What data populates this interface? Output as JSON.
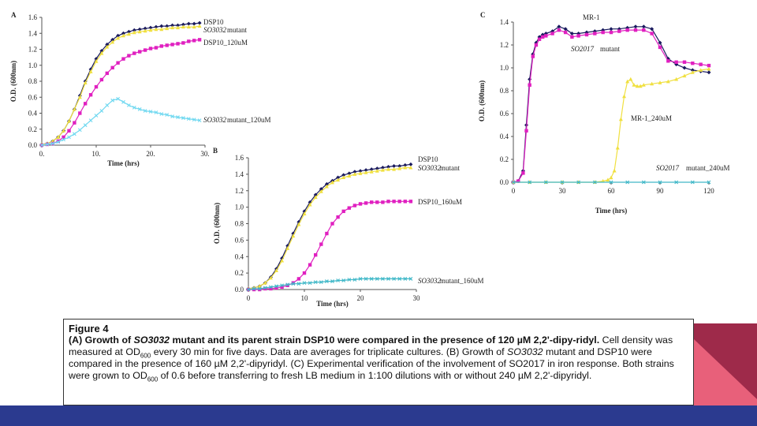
{
  "chart_data": [
    {
      "type": "line",
      "panel": "A",
      "xlabel": "Time (hrs)",
      "ylabel": "O.D. (600nm)",
      "xlim": [
        0,
        30
      ],
      "ylim": [
        0,
        1.6
      ],
      "xticks": [
        "0.",
        "10.",
        "20.",
        "30."
      ],
      "yticks": [
        "0.0",
        "0.2",
        "0.4",
        "0.6",
        "0.8",
        "1.0",
        "1.2",
        "1.4",
        "1.6"
      ],
      "series": [
        {
          "name": "DSP10",
          "color": "#1a1a5e",
          "marker": "diamond",
          "x": [
            0,
            1,
            2,
            3,
            4,
            5,
            6,
            7,
            8,
            9,
            10,
            11,
            12,
            13,
            14,
            15,
            16,
            17,
            18,
            19,
            20,
            21,
            22,
            23,
            24,
            25,
            26,
            27,
            28,
            29
          ],
          "y": [
            0.01,
            0.02,
            0.05,
            0.1,
            0.18,
            0.3,
            0.45,
            0.62,
            0.8,
            0.95,
            1.08,
            1.18,
            1.26,
            1.32,
            1.37,
            1.4,
            1.42,
            1.44,
            1.45,
            1.46,
            1.47,
            1.48,
            1.49,
            1.49,
            1.5,
            1.5,
            1.51,
            1.52,
            1.52,
            1.53
          ]
        },
        {
          "name": "SO3032 mutant",
          "color": "#f0e040",
          "marker": "triangle",
          "x": [
            0,
            1,
            2,
            3,
            4,
            5,
            6,
            7,
            8,
            9,
            10,
            11,
            12,
            13,
            14,
            15,
            16,
            17,
            18,
            19,
            20,
            21,
            22,
            23,
            24,
            25,
            26,
            27,
            28,
            29
          ],
          "y": [
            0.01,
            0.02,
            0.05,
            0.1,
            0.18,
            0.3,
            0.45,
            0.6,
            0.78,
            0.92,
            1.05,
            1.15,
            1.23,
            1.29,
            1.34,
            1.37,
            1.39,
            1.41,
            1.42,
            1.43,
            1.44,
            1.45,
            1.45,
            1.46,
            1.47,
            1.47,
            1.48,
            1.48,
            1.48,
            1.49
          ]
        },
        {
          "name": "DSP10_120uM",
          "color": "#e020c0",
          "marker": "square",
          "x": [
            0,
            1,
            2,
            3,
            4,
            5,
            6,
            7,
            8,
            9,
            10,
            11,
            12,
            13,
            14,
            15,
            16,
            17,
            18,
            19,
            20,
            21,
            22,
            23,
            24,
            25,
            26,
            27,
            28,
            29
          ],
          "y": [
            0.0,
            0.01,
            0.02,
            0.05,
            0.1,
            0.18,
            0.28,
            0.4,
            0.52,
            0.63,
            0.73,
            0.82,
            0.9,
            0.97,
            1.03,
            1.08,
            1.12,
            1.15,
            1.17,
            1.19,
            1.21,
            1.22,
            1.24,
            1.25,
            1.26,
            1.27,
            1.28,
            1.3,
            1.31,
            1.32
          ]
        },
        {
          "name": "SO3032 mutant_120uM",
          "color": "#6fd8f0",
          "marker": "cross",
          "x": [
            0,
            1,
            2,
            3,
            4,
            5,
            6,
            7,
            8,
            9,
            10,
            11,
            12,
            13,
            14,
            15,
            16,
            17,
            18,
            19,
            20,
            21,
            22,
            23,
            24,
            25,
            26,
            27,
            28,
            29
          ],
          "y": [
            0.0,
            0.01,
            0.02,
            0.04,
            0.07,
            0.1,
            0.14,
            0.19,
            0.25,
            0.31,
            0.37,
            0.43,
            0.5,
            0.56,
            0.58,
            0.54,
            0.5,
            0.47,
            0.45,
            0.43,
            0.42,
            0.41,
            0.39,
            0.38,
            0.36,
            0.35,
            0.34,
            0.33,
            0.32,
            0.31
          ]
        }
      ],
      "labels": [
        "DSP10",
        "SO3032",
        "mutant",
        "DSP10_120uM",
        "SO3032",
        "mutant_120uM"
      ]
    },
    {
      "type": "line",
      "panel": "B",
      "xlabel": "Time (hrs)",
      "ylabel": "O.D. (600nm)",
      "xlim": [
        0,
        30
      ],
      "ylim": [
        0,
        1.6
      ],
      "xticks": [
        "0",
        "10",
        "20",
        "30"
      ],
      "yticks": [
        "0.0",
        "0.2",
        "0.4",
        "0.6",
        "0.8",
        "1.0",
        "1.2",
        "1.4",
        "1.6"
      ],
      "series": [
        {
          "name": "DSP10",
          "color": "#1a1a5e",
          "marker": "diamond",
          "x": [
            0,
            1,
            2,
            3,
            4,
            5,
            6,
            7,
            8,
            9,
            10,
            11,
            12,
            13,
            14,
            15,
            16,
            17,
            18,
            19,
            20,
            21,
            22,
            23,
            24,
            25,
            26,
            27,
            28,
            29
          ],
          "y": [
            0.01,
            0.02,
            0.04,
            0.08,
            0.15,
            0.25,
            0.38,
            0.53,
            0.68,
            0.82,
            0.95,
            1.06,
            1.15,
            1.22,
            1.28,
            1.32,
            1.36,
            1.39,
            1.41,
            1.43,
            1.44,
            1.45,
            1.46,
            1.47,
            1.48,
            1.49,
            1.5,
            1.5,
            1.51,
            1.52
          ]
        },
        {
          "name": "SO3032 mutant",
          "color": "#f0e040",
          "marker": "triangle",
          "x": [
            0,
            1,
            2,
            3,
            4,
            5,
            6,
            7,
            8,
            9,
            10,
            11,
            12,
            13,
            14,
            15,
            16,
            17,
            18,
            19,
            20,
            21,
            22,
            23,
            24,
            25,
            26,
            27,
            28,
            29
          ],
          "y": [
            0.01,
            0.02,
            0.04,
            0.08,
            0.14,
            0.23,
            0.35,
            0.5,
            0.65,
            0.79,
            0.92,
            1.03,
            1.12,
            1.19,
            1.25,
            1.3,
            1.33,
            1.36,
            1.38,
            1.4,
            1.41,
            1.42,
            1.43,
            1.44,
            1.45,
            1.46,
            1.46,
            1.47,
            1.48,
            1.48
          ]
        },
        {
          "name": "DSP10_160uM",
          "color": "#e020c0",
          "marker": "square",
          "x": [
            0,
            1,
            2,
            3,
            4,
            5,
            6,
            7,
            8,
            9,
            10,
            11,
            12,
            13,
            14,
            15,
            16,
            17,
            18,
            19,
            20,
            21,
            22,
            23,
            24,
            25,
            26,
            27,
            28,
            29
          ],
          "y": [
            0.0,
            0.0,
            0.0,
            0.01,
            0.01,
            0.02,
            0.03,
            0.05,
            0.08,
            0.13,
            0.2,
            0.3,
            0.42,
            0.55,
            0.68,
            0.8,
            0.88,
            0.95,
            0.99,
            1.02,
            1.04,
            1.05,
            1.06,
            1.06,
            1.06,
            1.07,
            1.07,
            1.07,
            1.07,
            1.07
          ]
        },
        {
          "name": "SO3032 mutant_160uM",
          "color": "#40b8c8",
          "marker": "cross",
          "x": [
            0,
            1,
            2,
            3,
            4,
            5,
            6,
            7,
            8,
            9,
            10,
            11,
            12,
            13,
            14,
            15,
            16,
            17,
            18,
            19,
            20,
            21,
            22,
            23,
            24,
            25,
            26,
            27,
            28,
            29
          ],
          "y": [
            0.0,
            0.01,
            0.01,
            0.02,
            0.03,
            0.04,
            0.05,
            0.06,
            0.07,
            0.07,
            0.08,
            0.08,
            0.09,
            0.09,
            0.1,
            0.1,
            0.11,
            0.11,
            0.12,
            0.12,
            0.13,
            0.13,
            0.13,
            0.13,
            0.13,
            0.13,
            0.13,
            0.13,
            0.13,
            0.13
          ]
        }
      ],
      "labels": [
        "DSP10",
        "SO3032",
        "mutant",
        "DSP10_160uM",
        "SO3032",
        "mutant_160uM"
      ]
    },
    {
      "type": "line",
      "panel": "C",
      "xlabel": "Time (hrs)",
      "ylabel": "O.D. (600nm)",
      "xlim": [
        0,
        120
      ],
      "ylim": [
        0,
        1.4
      ],
      "xticks": [
        "0",
        "30",
        "60",
        "90",
        "120"
      ],
      "yticks": [
        "0.0",
        "0.2",
        "0.4",
        "0.6",
        "0.8",
        "1.0",
        "1.2",
        "1.4"
      ],
      "series": [
        {
          "name": "MR-1",
          "color": "#1a1a5e",
          "marker": "diamond",
          "x": [
            0,
            3,
            6,
            8,
            10,
            12,
            14,
            16,
            18,
            20,
            24,
            28,
            32,
            36,
            40,
            45,
            50,
            55,
            60,
            65,
            70,
            75,
            80,
            85,
            90,
            95,
            100,
            105,
            110,
            115,
            120
          ],
          "y": [
            0.0,
            0.01,
            0.1,
            0.5,
            0.9,
            1.12,
            1.22,
            1.27,
            1.29,
            1.3,
            1.32,
            1.36,
            1.34,
            1.3,
            1.3,
            1.31,
            1.32,
            1.33,
            1.34,
            1.34,
            1.35,
            1.36,
            1.36,
            1.34,
            1.22,
            1.08,
            1.03,
            1.0,
            0.98,
            0.97,
            0.96
          ]
        },
        {
          "name": "SO2017 mutant",
          "color": "#e020c0",
          "marker": "square",
          "x": [
            0,
            3,
            6,
            8,
            10,
            12,
            14,
            16,
            18,
            20,
            24,
            28,
            32,
            36,
            40,
            45,
            50,
            55,
            60,
            65,
            70,
            75,
            80,
            85,
            90,
            95,
            100,
            105,
            110,
            115,
            120
          ],
          "y": [
            0.0,
            0.01,
            0.08,
            0.45,
            0.85,
            1.1,
            1.2,
            1.25,
            1.27,
            1.28,
            1.3,
            1.33,
            1.31,
            1.27,
            1.28,
            1.29,
            1.3,
            1.31,
            1.31,
            1.32,
            1.33,
            1.33,
            1.33,
            1.3,
            1.18,
            1.06,
            1.05,
            1.05,
            1.04,
            1.03,
            1.02
          ]
        },
        {
          "name": "MR-1_240uM",
          "color": "#f0e040",
          "marker": "triangle",
          "x": [
            0,
            10,
            20,
            30,
            40,
            50,
            55,
            58,
            60,
            62,
            64,
            66,
            68,
            70,
            72,
            74,
            76,
            78,
            80,
            85,
            90,
            95,
            100,
            105,
            110,
            115,
            120
          ],
          "y": [
            0.0,
            0.0,
            0.0,
            0.0,
            0.0,
            0.0,
            0.01,
            0.02,
            0.04,
            0.1,
            0.3,
            0.55,
            0.75,
            0.88,
            0.9,
            0.85,
            0.84,
            0.84,
            0.85,
            0.86,
            0.87,
            0.88,
            0.9,
            0.93,
            0.96,
            0.98,
            0.99
          ]
        },
        {
          "name": "SO2017 mutant_240uM",
          "color": "#40b8c8",
          "marker": "cross",
          "x": [
            0,
            10,
            20,
            30,
            40,
            50,
            60,
            70,
            80,
            90,
            100,
            110,
            120
          ],
          "y": [
            0.0,
            0.0,
            0.0,
            0.0,
            0.0,
            0.0,
            0.0,
            0.0,
            0.0,
            0.0,
            0.0,
            0.0,
            0.0
          ]
        }
      ],
      "labels": [
        "MR-1",
        "SO2017",
        "mutant",
        "MR-1_240uM",
        "SO2017",
        "mutant_240uM"
      ]
    }
  ],
  "panels": {
    "a": {
      "letter": "A"
    },
    "b": {
      "letter": "B"
    },
    "c": {
      "letter": "C"
    }
  },
  "caption": {
    "figure": "Figure 4",
    "a_prefix": "(A) Growth of ",
    "a_strain": "SO3032",
    "a_rest": " mutant and its parent strain DSP10 were compared in the presence of 120 µM 2,2'-dipy-ridyl",
    "a_dot": ".",
    "line2a": " Cell density was measured at OD",
    "od_sub": "600",
    "line2b": " every 30 min for five days. Data are averages for triplicate cultures. (B) Growth of ",
    "b_strain": "SO3032",
    "line3": " mutant and DSP10 were compared in the presence of 160 µM 2,2'-dipyridyl. (C) Experimental verification of the involvement of SO2017 in iron response. Both strains were grown to OD",
    "od_sub2": "600",
    "line4": " of 0.6 before transferring to fresh LB medium in 1:100 dilutions with or without 240 µM 2,2'-dipyridyl."
  },
  "theme": {
    "band_color": "#2b3a8f",
    "corner_dark": "#9e2a4a",
    "corner_pink": "#e8607a"
  }
}
